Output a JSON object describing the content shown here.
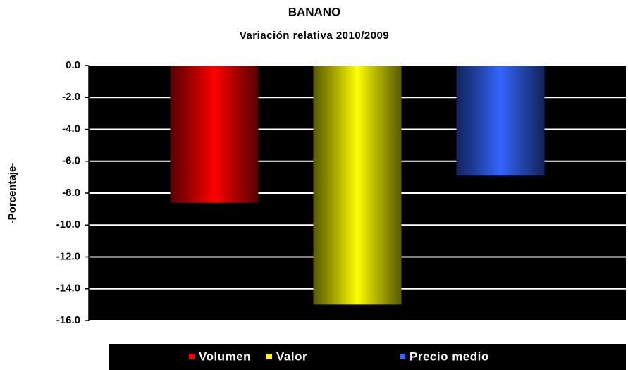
{
  "chart_data": {
    "type": "bar",
    "title": "BANANO",
    "subtitle": "Variación relativa 2010/2009",
    "y_label": "-Porcentaje-",
    "categories": [
      null
    ],
    "series": [
      {
        "name": "Volumen",
        "color": "#ff0000",
        "values": [
          -8.6
        ]
      },
      {
        "name": "Valor",
        "color": "#ffff00",
        "values": [
          -15.0
        ]
      },
      {
        "name": "Precio medio",
        "color": "#3366ff",
        "values": [
          -6.9
        ]
      }
    ],
    "ylim": [
      -16,
      0
    ],
    "yticks": [
      {
        "value": 0,
        "label": "0.0"
      },
      {
        "value": -2,
        "label": "-2.0"
      },
      {
        "value": -4,
        "label": "-4.0"
      },
      {
        "value": -6,
        "label": "-6.0"
      },
      {
        "value": -8,
        "label": "-8.0"
      },
      {
        "value": -10,
        "label": "-10.0"
      },
      {
        "value": -12,
        "label": "-12.0"
      },
      {
        "value": -14,
        "label": "-14.0"
      },
      {
        "value": -16,
        "label": "-16.0"
      }
    ],
    "grid": true,
    "plot_background": "#000000",
    "legend": "bottom"
  }
}
